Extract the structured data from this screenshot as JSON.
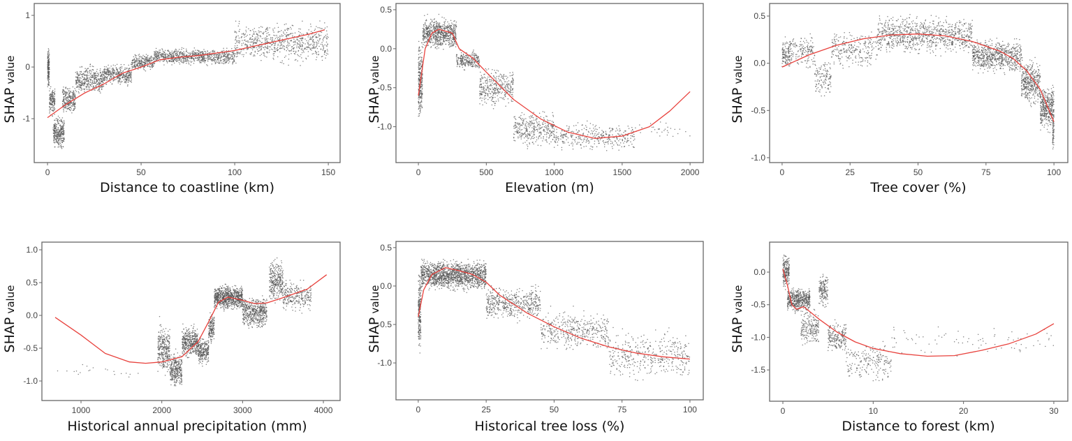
{
  "chart_data": [
    {
      "type": "scatter",
      "xlabel": "Distance to coastline (km)",
      "ylabel_main": "SHAP",
      "ylabel_unit": "value",
      "xlim": [
        -7.1,
        156.3
      ],
      "ylim": [
        -1.85,
        1.23
      ],
      "xticks": [
        0,
        50,
        100,
        150
      ],
      "xtick_labels": [
        "0",
        "50",
        "100",
        "150"
      ],
      "yticks": [
        1,
        0,
        -1
      ],
      "ytick_labels": [
        "1",
        "0",
        "-1"
      ],
      "fit_curve": [
        [
          0,
          -0.98
        ],
        [
          10,
          -0.72
        ],
        [
          20,
          -0.5
        ],
        [
          30,
          -0.33
        ],
        [
          40,
          -0.12
        ],
        [
          50,
          0.0
        ],
        [
          60,
          0.14
        ],
        [
          70,
          0.19
        ],
        [
          80,
          0.22
        ],
        [
          90,
          0.27
        ],
        [
          100,
          0.32
        ],
        [
          110,
          0.4
        ],
        [
          120,
          0.48
        ],
        [
          130,
          0.56
        ],
        [
          140,
          0.64
        ],
        [
          148,
          0.72
        ]
      ],
      "scatter_bands": [
        [
          0,
          1,
          -0.5,
          0.45,
          150
        ],
        [
          1,
          4,
          -1.0,
          -0.3,
          150
        ],
        [
          3,
          9,
          -1.65,
          -0.9,
          300
        ],
        [
          8,
          15,
          -1.0,
          -0.3,
          250
        ],
        [
          15,
          30,
          -0.6,
          0.1,
          400
        ],
        [
          30,
          45,
          -0.4,
          0.1,
          350
        ],
        [
          45,
          57,
          -0.1,
          0.3,
          250
        ],
        [
          57,
          100,
          0.0,
          0.4,
          800
        ],
        [
          100,
          150,
          0.0,
          0.95,
          700
        ]
      ]
    },
    {
      "type": "scatter",
      "xlabel": "Elevation (m)",
      "ylabel_main": "SHAP",
      "ylabel_unit": "value",
      "xlim": [
        -165,
        2097
      ],
      "ylim": [
        -1.46,
        0.58
      ],
      "xticks": [
        0,
        500,
        1000,
        1500,
        2000
      ],
      "xtick_labels": [
        "0",
        "500",
        "1000",
        "1500",
        "2000"
      ],
      "yticks": [
        0.5,
        0,
        -0.5,
        -1
      ],
      "ytick_labels": [
        "0.5",
        "0.0",
        "-0.5",
        "-1.0"
      ],
      "fit_curve": [
        [
          0,
          -0.6
        ],
        [
          50,
          0.0
        ],
        [
          100,
          0.2
        ],
        [
          150,
          0.25
        ],
        [
          250,
          0.2
        ],
        [
          300,
          0.0
        ],
        [
          400,
          -0.12
        ],
        [
          500,
          -0.3
        ],
        [
          700,
          -0.65
        ],
        [
          900,
          -0.9
        ],
        [
          1100,
          -1.07
        ],
        [
          1300,
          -1.15
        ],
        [
          1500,
          -1.12
        ],
        [
          1700,
          -1.0
        ],
        [
          1850,
          -0.8
        ],
        [
          2000,
          -0.55
        ]
      ],
      "scatter_bands": [
        [
          0,
          30,
          -1.05,
          0.2,
          250
        ],
        [
          30,
          280,
          -0.05,
          0.45,
          700
        ],
        [
          280,
          450,
          -0.3,
          0.0,
          250
        ],
        [
          450,
          700,
          -0.8,
          -0.2,
          350
        ],
        [
          700,
          1000,
          -1.3,
          -0.75,
          350
        ],
        [
          1000,
          1600,
          -1.35,
          -0.9,
          350
        ],
        [
          1600,
          2000,
          -1.2,
          -0.9,
          30
        ]
      ]
    },
    {
      "type": "scatter",
      "xlabel": "Tree cover (%)",
      "ylabel_main": "SHAP",
      "ylabel_unit": "value",
      "xlim": [
        -4.6,
        105.1
      ],
      "ylim": [
        -1.052,
        0.633
      ],
      "xticks": [
        0,
        25,
        50,
        75,
        100
      ],
      "xtick_labels": [
        "0",
        "25",
        "50",
        "75",
        "100"
      ],
      "yticks": [
        0.5,
        0,
        -0.5,
        -1
      ],
      "ytick_labels": [
        "0.5",
        "0.0",
        "-0.5",
        "-1.0"
      ],
      "fit_curve": [
        [
          0,
          -0.04
        ],
        [
          10,
          0.09
        ],
        [
          20,
          0.19
        ],
        [
          30,
          0.26
        ],
        [
          40,
          0.3
        ],
        [
          50,
          0.31
        ],
        [
          60,
          0.29
        ],
        [
          70,
          0.23
        ],
        [
          80,
          0.13
        ],
        [
          85,
          0.05
        ],
        [
          90,
          -0.08
        ],
        [
          95,
          -0.28
        ],
        [
          100,
          -0.62
        ]
      ],
      "scatter_bands": [
        [
          0,
          3,
          -0.1,
          0.3,
          120
        ],
        [
          3,
          12,
          -0.1,
          0.35,
          150
        ],
        [
          12,
          18,
          -0.4,
          0.1,
          120
        ],
        [
          18,
          35,
          -0.1,
          0.4,
          250
        ],
        [
          35,
          70,
          0.05,
          0.55,
          900
        ],
        [
          70,
          88,
          -0.15,
          0.3,
          700
        ],
        [
          88,
          95,
          -0.5,
          0.1,
          400
        ],
        [
          95,
          100,
          -0.75,
          -0.2,
          400
        ],
        [
          99.5,
          100,
          -0.98,
          -0.5,
          60
        ]
      ]
    },
    {
      "type": "scatter",
      "xlabel": "Historical annual precipitation (mm)",
      "ylabel_main": "SHAP",
      "ylabel_unit": "value",
      "xlim": [
        516,
        4207
      ],
      "ylim": [
        -1.298,
        1.117
      ],
      "xticks": [
        1000,
        2000,
        3000,
        4000
      ],
      "xtick_labels": [
        "1000",
        "2000",
        "3000",
        "4000"
      ],
      "yticks": [
        1,
        0.5,
        0,
        -0.5,
        -1
      ],
      "ytick_labels": [
        "1.0",
        "0.5",
        "0.0",
        "-0.5",
        "-1.0"
      ],
      "fit_curve": [
        [
          680,
          -0.03
        ],
        [
          1000,
          -0.3
        ],
        [
          1300,
          -0.58
        ],
        [
          1600,
          -0.71
        ],
        [
          1800,
          -0.73
        ],
        [
          2000,
          -0.71
        ],
        [
          2250,
          -0.63
        ],
        [
          2450,
          -0.4
        ],
        [
          2600,
          -0.05
        ],
        [
          2700,
          0.2
        ],
        [
          2820,
          0.28
        ],
        [
          3000,
          0.23
        ],
        [
          3150,
          0.18
        ],
        [
          3300,
          0.19
        ],
        [
          3500,
          0.27
        ],
        [
          3800,
          0.4
        ],
        [
          4040,
          0.62
        ]
      ],
      "scatter_bands": [
        [
          1950,
          2100,
          -1.0,
          0.0,
          300
        ],
        [
          2100,
          2250,
          -1.15,
          -0.5,
          300
        ],
        [
          2250,
          2450,
          -0.7,
          -0.1,
          400
        ],
        [
          2450,
          2580,
          -0.8,
          -0.3,
          250
        ],
        [
          2580,
          2650,
          -0.5,
          0.1,
          150
        ],
        [
          2650,
          3000,
          0.05,
          0.5,
          800
        ],
        [
          3000,
          3300,
          -0.25,
          0.35,
          500
        ],
        [
          3330,
          3500,
          0.1,
          0.95,
          300
        ],
        [
          3500,
          3850,
          0.0,
          0.6,
          250
        ],
        [
          700,
          1900,
          -1.0,
          -0.7,
          20
        ]
      ]
    },
    {
      "type": "scatter",
      "xlabel": "Historical tree loss (%)",
      "ylabel_main": "SHAP",
      "ylabel_unit": "value",
      "xlim": [
        -8.2,
        104.9
      ],
      "ylim": [
        -1.48,
        0.58
      ],
      "xticks": [
        0,
        25,
        50,
        75,
        100
      ],
      "xtick_labels": [
        "0",
        "25",
        "50",
        "75",
        "100"
      ],
      "yticks": [
        0.5,
        0,
        -0.5,
        -1
      ],
      "ytick_labels": [
        "0.5",
        "0.0",
        "-0.5",
        "-1.0"
      ],
      "fit_curve": [
        [
          0,
          -0.4
        ],
        [
          2,
          -0.05
        ],
        [
          5,
          0.15
        ],
        [
          10,
          0.24
        ],
        [
          15,
          0.2
        ],
        [
          20,
          0.15
        ],
        [
          25,
          0.05
        ],
        [
          30,
          -0.12
        ],
        [
          40,
          -0.35
        ],
        [
          50,
          -0.53
        ],
        [
          60,
          -0.68
        ],
        [
          70,
          -0.79
        ],
        [
          80,
          -0.87
        ],
        [
          90,
          -0.92
        ],
        [
          100,
          -0.95
        ]
      ],
      "scatter_bands": [
        [
          0,
          1,
          -0.95,
          0.3,
          200
        ],
        [
          1,
          25,
          -0.1,
          0.38,
          1500
        ],
        [
          25,
          45,
          -0.5,
          0.05,
          500
        ],
        [
          45,
          70,
          -0.9,
          -0.25,
          400
        ],
        [
          70,
          100,
          -1.3,
          -0.5,
          400
        ]
      ]
    },
    {
      "type": "scatter",
      "xlabel": "Distance to forest (km)",
      "ylabel_main": "SHAP",
      "ylabel_unit": "value",
      "xlim": [
        -1.47,
        31.55
      ],
      "ylim": [
        -1.98,
        0.46
      ],
      "xticks": [
        0,
        10,
        20,
        30
      ],
      "xtick_labels": [
        "0",
        "10",
        "20",
        "30"
      ],
      "yticks": [
        0,
        -0.5,
        -1,
        -1.5
      ],
      "ytick_labels": [
        "0.0",
        "-0.5",
        "-1.0",
        "-1.5"
      ],
      "fit_curve": [
        [
          0,
          0.05
        ],
        [
          0.5,
          -0.2
        ],
        [
          1,
          -0.5
        ],
        [
          1.5,
          -0.57
        ],
        [
          2.3,
          -0.53
        ],
        [
          4,
          -0.72
        ],
        [
          6,
          -0.92
        ],
        [
          8,
          -1.07
        ],
        [
          10,
          -1.17
        ],
        [
          13,
          -1.25
        ],
        [
          16,
          -1.29
        ],
        [
          19,
          -1.28
        ],
        [
          22,
          -1.2
        ],
        [
          25,
          -1.1
        ],
        [
          28,
          -0.95
        ],
        [
          30,
          -0.79
        ]
      ],
      "scatter_bands": [
        [
          0,
          0.7,
          -0.3,
          0.32,
          200
        ],
        [
          0.5,
          3,
          -0.65,
          -0.2,
          500
        ],
        [
          2,
          4,
          -1.2,
          -0.5,
          200
        ],
        [
          4,
          5,
          -0.6,
          0.05,
          150
        ],
        [
          5,
          7,
          -1.3,
          -0.7,
          200
        ],
        [
          7,
          12,
          -1.75,
          -1.0,
          200
        ],
        [
          12,
          30,
          -1.35,
          -0.75,
          80
        ]
      ]
    }
  ],
  "colors": {
    "points": "#555555",
    "fit_line": "#e8413c",
    "frame": "#666666"
  }
}
